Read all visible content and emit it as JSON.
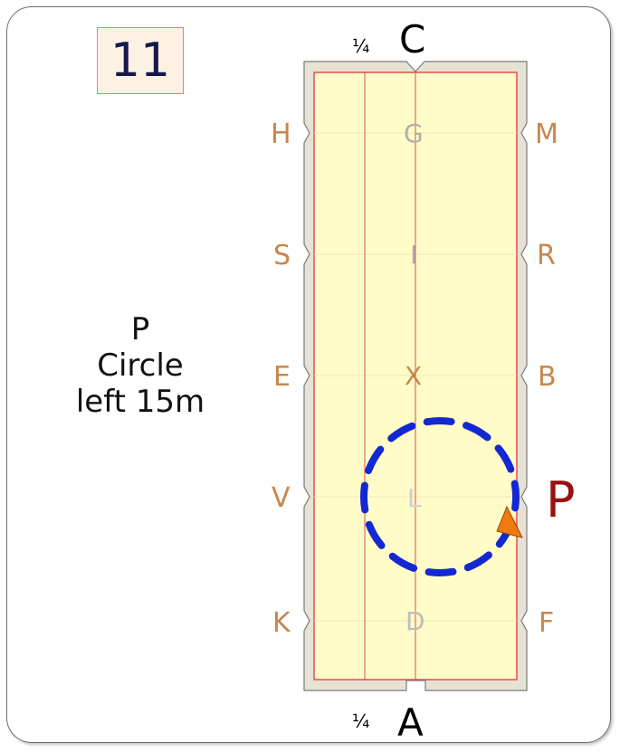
{
  "test_number": "11",
  "instruction": {
    "line1": "P",
    "line2": "Circle",
    "line3": "left 15m"
  },
  "arena": {
    "top_letter": "C",
    "bottom_letter": "A",
    "quarter_mark": "¼",
    "left_letters": [
      "H",
      "S",
      "E",
      "V",
      "K"
    ],
    "right_letters": [
      "M",
      "R",
      "B",
      "P",
      "F"
    ],
    "centerline_letters": [
      "G",
      "I",
      "X",
      "L",
      "D"
    ],
    "circle_start_letter": "P"
  },
  "colors": {
    "arena_fill": "#fffcc8",
    "arena_border": "#e05050",
    "fence": "#e7e2d4",
    "letter": "#c8864e",
    "centerline_letter": "#b0b0b0",
    "circle_path": "#1428d2",
    "direction_arrow": "#f07a10",
    "p_marker": "#9a1010"
  },
  "figure": {
    "type": "circle",
    "direction": "left",
    "diameter_m": 15
  }
}
